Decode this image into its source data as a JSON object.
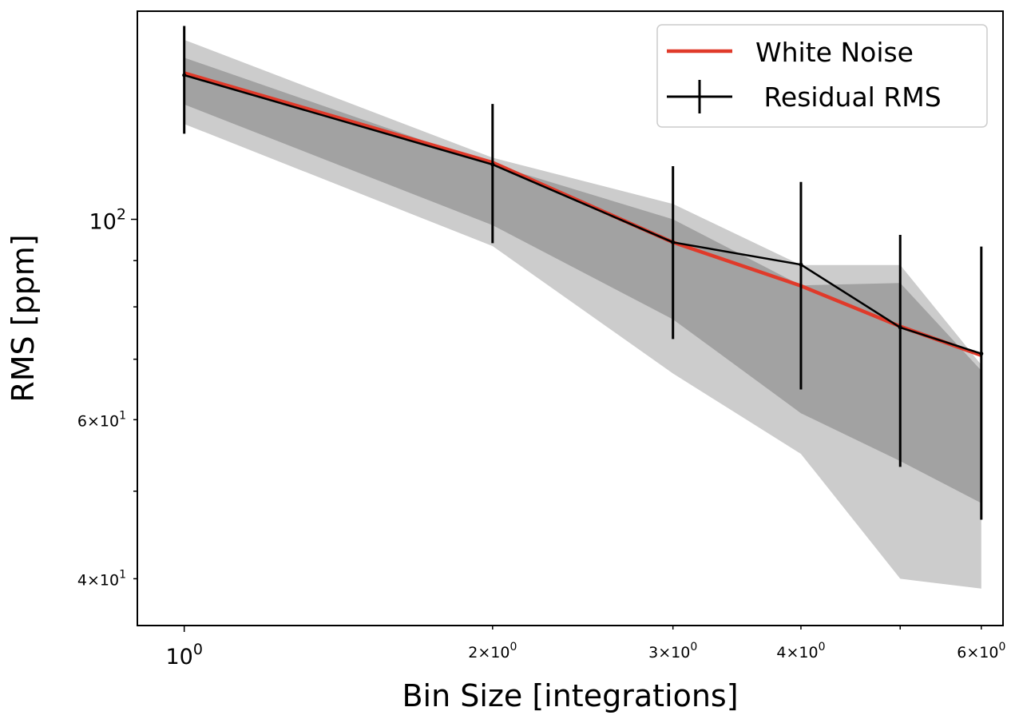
{
  "chart_data": {
    "type": "line",
    "x_scale": "log",
    "y_scale": "log",
    "xlabel": "Bin Size [integrations]",
    "ylabel": "RMS [ppm]",
    "xlim": [
      0.9,
      6.3
    ],
    "ylim": [
      35.5,
      170
    ],
    "x_ticks": [
      {
        "value": 1,
        "mantissa": "",
        "base": "10",
        "exp": "0",
        "major": true
      },
      {
        "value": 2,
        "mantissa": "2×",
        "base": "10",
        "exp": "0",
        "major": false
      },
      {
        "value": 3,
        "mantissa": "3×",
        "base": "10",
        "exp": "0",
        "major": false
      },
      {
        "value": 4,
        "mantissa": "4×",
        "base": "10",
        "exp": "0",
        "major": false
      },
      {
        "value": 6,
        "mantissa": "6×",
        "base": "10",
        "exp": "0",
        "major": false
      }
    ],
    "x_minor_ticks_unlabeled": [
      5
    ],
    "y_ticks": [
      {
        "value": 100,
        "mantissa": "",
        "base": "10",
        "exp": "2",
        "major": true
      },
      {
        "value": 60,
        "mantissa": "6×",
        "base": "10",
        "exp": "1",
        "major": false
      },
      {
        "value": 40,
        "mantissa": "4×",
        "base": "10",
        "exp": "1",
        "major": false
      }
    ],
    "y_minor_ticks_unlabeled": [
      50,
      70,
      80,
      90
    ],
    "x": [
      1,
      2,
      3,
      4,
      5,
      6
    ],
    "series": [
      {
        "name": "White Noise",
        "kind": "line",
        "color": "#e03a2a",
        "values": [
          145.2,
          115.6,
          94.3,
          84.4,
          76.1,
          70.7
        ]
      },
      {
        "name": "Residual RMS",
        "kind": "errorbar",
        "color": "#000000",
        "values": [
          144.4,
          115.0,
          94.3,
          89.1,
          75.9,
          71.0
        ],
        "err_low": [
          20.0,
          20.9,
          20.6,
          24.3,
          22.7,
          24.5
        ],
        "err_high": [
          19.3,
          19.2,
          20.2,
          20.9,
          20.2,
          22.3
        ]
      }
    ],
    "bands": [
      {
        "level": "outer",
        "color": "#cccccc",
        "lower": [
          127.5,
          93.4,
          67.5,
          55.0,
          40.0,
          39.0
        ],
        "upper": [
          158.0,
          117.0,
          104.0,
          89.0,
          89.0,
          69.0
        ]
      },
      {
        "level": "inner",
        "color": "#a2a2a2",
        "lower": [
          134.0,
          98.5,
          77.5,
          61.0,
          54.0,
          48.5
        ],
        "upper": [
          151.0,
          115.0,
          100.0,
          84.5,
          85.0,
          68.0
        ]
      }
    ],
    "legend": {
      "position": "upper right",
      "entries": [
        {
          "label": "White Noise",
          "marker": "line",
          "color": "#e03a2a"
        },
        {
          "label": " Residual RMS",
          "marker": "errorbar",
          "color": "#000000"
        }
      ]
    },
    "grid": false
  }
}
